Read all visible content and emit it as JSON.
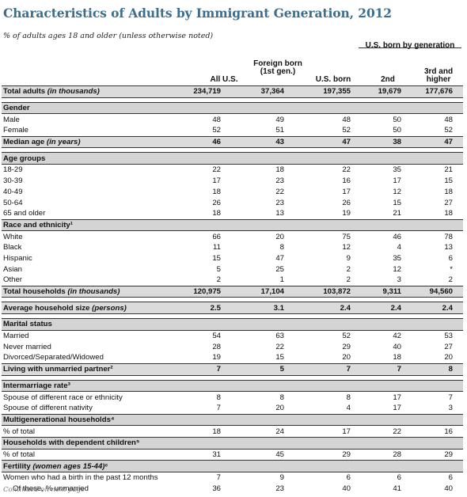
{
  "title": "Characteristics of Adults by Immigrant Generation, 2012",
  "subtitle": "% of adults ages 18 and older (unless otherwise noted)",
  "column_group": "U.S. born by generation",
  "columns": {
    "all_us": "All U.S.",
    "foreign": "Foreign born (1st gen.)",
    "us_born": "U.S. born",
    "second": "2nd",
    "third": "3rd and higher"
  },
  "rows": {
    "total_adults": {
      "label": "Total adults",
      "qual": "(in thousands)",
      "v": [
        "234,719",
        "37,364",
        "197,355",
        "19,679",
        "177,676"
      ]
    },
    "gender": "Gender",
    "male": {
      "label": "Male",
      "v": [
        "48",
        "49",
        "48",
        "50",
        "48"
      ]
    },
    "female": {
      "label": "Female",
      "v": [
        "52",
        "51",
        "52",
        "50",
        "52"
      ]
    },
    "median_age": {
      "label": "Median age",
      "qual": "(in years)",
      "v": [
        "46",
        "43",
        "47",
        "38",
        "47"
      ]
    },
    "age_groups": "Age groups",
    "a18_29": {
      "label": "18-29",
      "v": [
        "22",
        "18",
        "22",
        "35",
        "21"
      ]
    },
    "a30_39": {
      "label": "30-39",
      "v": [
        "17",
        "23",
        "16",
        "17",
        "15"
      ]
    },
    "a40_49": {
      "label": "40-49",
      "v": [
        "18",
        "22",
        "17",
        "12",
        "18"
      ]
    },
    "a50_64": {
      "label": "50-64",
      "v": [
        "26",
        "23",
        "26",
        "15",
        "27"
      ]
    },
    "a65": {
      "label": "65 and older",
      "v": [
        "18",
        "13",
        "19",
        "21",
        "18"
      ]
    },
    "race": "Race and ethnicity¹",
    "white": {
      "label": "White",
      "v": [
        "66",
        "20",
        "75",
        "46",
        "78"
      ]
    },
    "black": {
      "label": "Black",
      "v": [
        "11",
        "8",
        "12",
        "4",
        "13"
      ]
    },
    "hispanic": {
      "label": "Hispanic",
      "v": [
        "15",
        "47",
        "9",
        "35",
        "6"
      ]
    },
    "asian": {
      "label": "Asian",
      "v": [
        "5",
        "25",
        "2",
        "12",
        "*"
      ]
    },
    "other": {
      "label": "Other",
      "v": [
        "2",
        "1",
        "2",
        "3",
        "2"
      ]
    },
    "total_households": {
      "label": "Total households",
      "qual": "(in thousands)",
      "v": [
        "120,975",
        "17,104",
        "103,872",
        "9,311",
        "94,560"
      ]
    },
    "avg_household": {
      "label": "Average household size",
      "qual": "(persons)",
      "v": [
        "2.5",
        "3.1",
        "2.4",
        "2.4",
        "2.4"
      ]
    },
    "marital": "Marital status",
    "married": {
      "label": "Married",
      "v": [
        "54",
        "63",
        "52",
        "42",
        "53"
      ]
    },
    "never_married": {
      "label": "Never married",
      "v": [
        "28",
        "22",
        "29",
        "40",
        "27"
      ]
    },
    "divorced": {
      "label": "Divorced/Separated/Widowed",
      "v": [
        "19",
        "15",
        "20",
        "18",
        "20"
      ]
    },
    "unmarried_partner": {
      "label": "Living with unmarried partner²",
      "v": [
        "7",
        "5",
        "7",
        "7",
        "8"
      ]
    },
    "intermarriage": "Intermarriage rate³",
    "diff_race": {
      "label": "Spouse of different race or ethnicity",
      "v": [
        "8",
        "8",
        "8",
        "17",
        "7"
      ]
    },
    "diff_nativity": {
      "label": "Spouse of different nativity",
      "v": [
        "7",
        "20",
        "4",
        "17",
        "3"
      ]
    },
    "multigen": "Multigenerational households⁴",
    "multigen_pct": {
      "label": "% of total",
      "v": [
        "18",
        "24",
        "17",
        "22",
        "16"
      ]
    },
    "dependent": "Households with dependent children⁵",
    "dependent_pct": {
      "label": "% of total",
      "v": [
        "31",
        "45",
        "29",
        "28",
        "29"
      ]
    },
    "fertility": "Fertility",
    "fertility_qual": "(women ages 15-44)⁶",
    "birth": {
      "label": "Women who had a birth in the past 12 months",
      "v": [
        "7",
        "9",
        "6",
        "6",
        "6"
      ]
    },
    "unmarried": {
      "label": "Of these, % unmarried",
      "v": [
        "36",
        "23",
        "40",
        "41",
        "40"
      ]
    }
  },
  "continued": "Continued on next page"
}
